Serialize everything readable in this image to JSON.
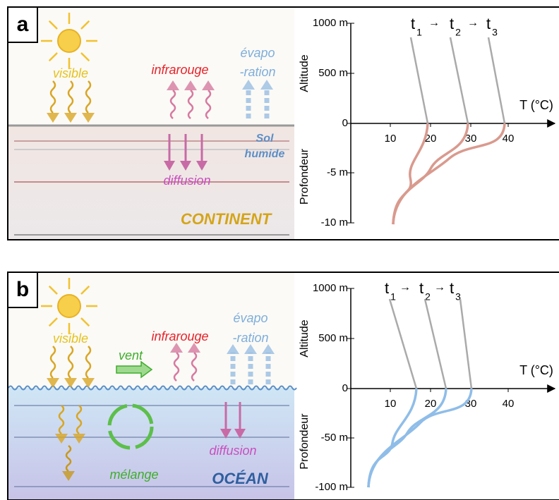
{
  "panels": [
    {
      "letter": "a",
      "labels": {
        "visible": "visible",
        "infrarouge": "infrarouge",
        "evapo": "évapo",
        "ration": "-ration",
        "sol": "Sol",
        "humide": "humide",
        "diffusion": "diffusion",
        "surface": "CONTINENT"
      },
      "graph": {
        "y_label_top": "Altitude",
        "y_label_bottom": "Profondeur",
        "x_label": "T (°C)",
        "yticks": [
          "1000 m",
          "500 m",
          "0",
          "-5 m",
          "-10 m"
        ],
        "xticks": [
          "10",
          "20",
          "30",
          "40"
        ],
        "time_symbol": "t",
        "time_indices": [
          "1",
          "2",
          "3"
        ],
        "arrow": "→"
      }
    },
    {
      "letter": "b",
      "labels": {
        "visible": "visible",
        "infrarouge": "infrarouge",
        "evapo": "évapo",
        "ration": "-ration",
        "vent": "vent",
        "melange": "mélange",
        "diffusion": "diffusion",
        "surface": "OCÉAN"
      },
      "graph": {
        "y_label_top": "Altitude",
        "y_label_bottom": "Profondeur",
        "x_label": "T (°C)",
        "yticks": [
          "1000 m",
          "500 m",
          "0",
          "-50 m",
          "-100 m"
        ],
        "xticks": [
          "10",
          "20",
          "30",
          "40"
        ],
        "time_symbol": "t",
        "time_indices": [
          "1",
          "2",
          "3"
        ],
        "arrow": "→"
      }
    }
  ]
}
